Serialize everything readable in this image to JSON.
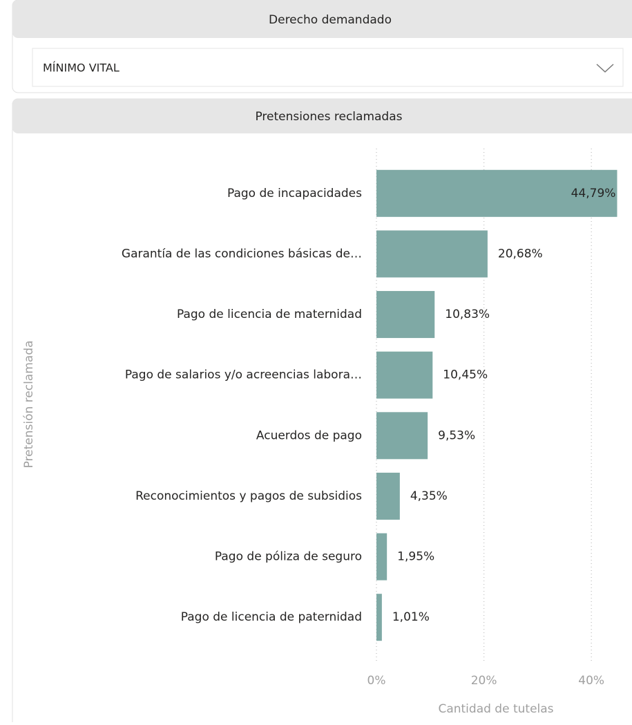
{
  "slicer": {
    "title": "Derecho demandado",
    "selected": "MÍNIMO VITAL"
  },
  "chart_data": {
    "type": "bar",
    "orientation": "horizontal",
    "title": "Pretensiones reclamadas",
    "x_label": "Cantidad de tutelas",
    "y_label": "Pretensión reclamada",
    "categories": [
      "Pago de incapacidades",
      "Garantía de las condiciones básicas de…",
      "Pago de licencia de maternidad",
      "Pago de salarios y/o acreencias labora…",
      "Acuerdos de pago",
      "Reconocimientos y pagos de subsidios",
      "Pago de póliza de seguro",
      "Pago de licencia de paternidad"
    ],
    "values": [
      44.79,
      20.68,
      10.83,
      10.45,
      9.53,
      4.35,
      1.95,
      1.01
    ],
    "value_labels": [
      "44,79%",
      "20,68%",
      "10,83%",
      "10,45%",
      "9,53%",
      "4,35%",
      "1,95%",
      "1,01%"
    ],
    "color": "#7fa9a5",
    "xlim": [
      0,
      45
    ],
    "xticks": [
      {
        "value": 0,
        "label": "0%"
      },
      {
        "value": 20,
        "label": "20%"
      },
      {
        "value": 40,
        "label": "40%"
      }
    ],
    "grid": true
  }
}
